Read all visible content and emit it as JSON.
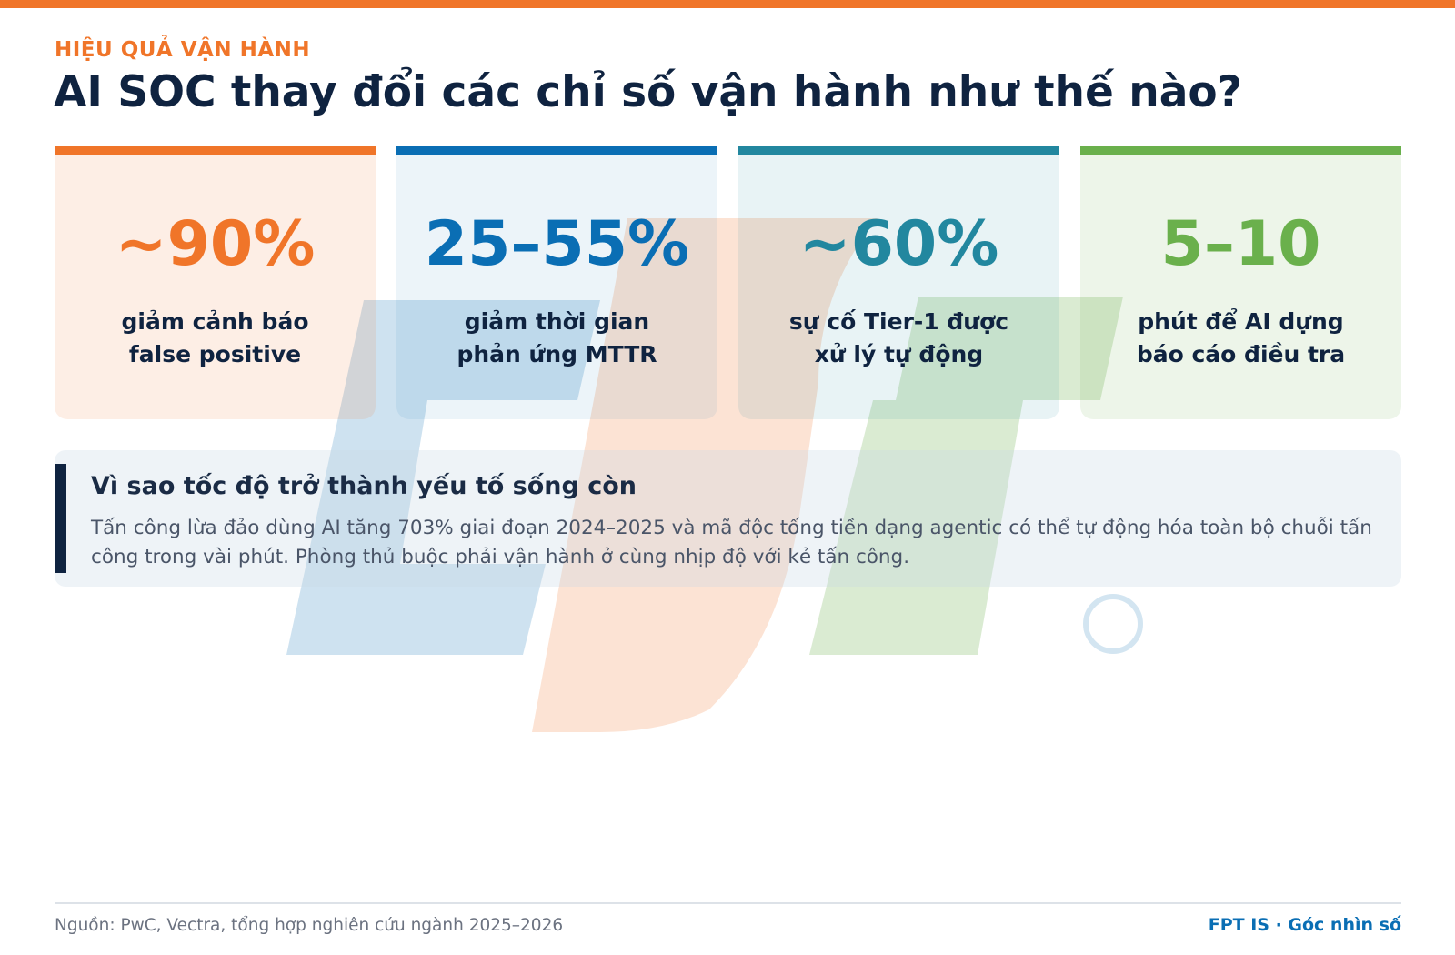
{
  "header": {
    "kicker": "HIỆU QUẢ VẬN HÀNH",
    "title": "AI SOC thay đổi các chỉ số vận hành như thế nào?"
  },
  "cards": [
    {
      "value": "~90%",
      "label_lines": [
        "giảm cảnh báo",
        "false positive"
      ]
    },
    {
      "value": "25–55%",
      "label_lines": [
        "giảm thời gian",
        "phản ứng MTTR"
      ]
    },
    {
      "value": "~60%",
      "label_lines": [
        "sự cố Tier-1 được",
        "xử lý tự động"
      ]
    },
    {
      "value": "5–10",
      "label_lines": [
        "phút để AI dựng",
        "báo cáo điều tra"
      ]
    }
  ],
  "callout": {
    "title": "Vì sao tốc độ trở thành yếu tố sống còn",
    "body": "Tấn công lừa đảo dùng AI tăng 703% giai đoạn 2024–2025 và mã độc tống tiền dạng agentic có thể tự động hóa toàn bộ chuỗi tấn công trong vài phút. Phòng thủ buộc phải vận hành ở cùng nhịp độ với kẻ tấn công."
  },
  "footer": {
    "source": "Nguồn: PwC, Vectra, tổng hợp nghiên cứu ngành 2025–2026",
    "brand": "FPT IS · Góc nhìn số"
  }
}
